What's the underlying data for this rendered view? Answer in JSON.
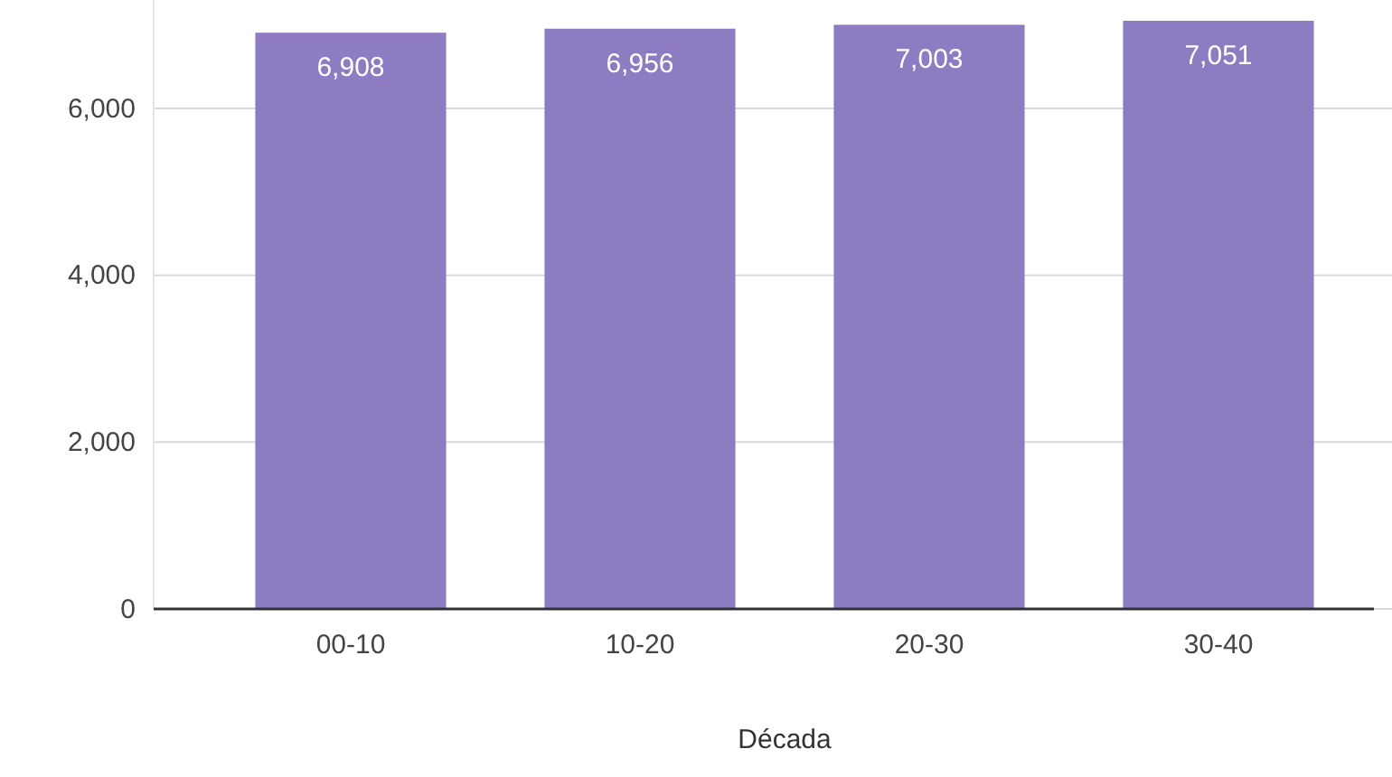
{
  "chart_data": {
    "type": "bar",
    "xlabel": "Década",
    "categories": [
      "00-10",
      "10-20",
      "20-30",
      "30-40"
    ],
    "values": [
      6908,
      6956,
      7003,
      7051
    ],
    "value_labels": [
      "6,908",
      "6,956",
      "7,003",
      "7,051"
    ],
    "color": "#8e7cc3",
    "ylim": [
      0,
      7300
    ],
    "yticks": [
      {
        "value": 0,
        "label": "0"
      },
      {
        "value": 2000,
        "label": "2,000"
      },
      {
        "value": 4000,
        "label": "4,000"
      },
      {
        "value": 6000,
        "label": "6,000"
      }
    ],
    "grid": "y"
  }
}
